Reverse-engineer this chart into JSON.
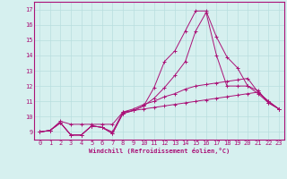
{
  "xlabel": "Windchill (Refroidissement éolien,°C)",
  "background_color": "#d6f0ef",
  "grid_color": "#b8dede",
  "line_color": "#aa1177",
  "xlim": [
    -0.5,
    23.5
  ],
  "ylim": [
    8.5,
    17.5
  ],
  "yticks": [
    9,
    10,
    11,
    12,
    13,
    14,
    15,
    16,
    17
  ],
  "xticks": [
    0,
    1,
    2,
    3,
    4,
    5,
    6,
    7,
    8,
    9,
    10,
    11,
    12,
    13,
    14,
    15,
    16,
    17,
    18,
    19,
    20,
    21,
    22,
    23
  ],
  "series": [
    [
      9.0,
      9.1,
      9.6,
      8.8,
      8.8,
      9.4,
      9.3,
      9.0,
      10.3,
      10.4,
      10.5,
      10.6,
      10.7,
      10.8,
      10.9,
      11.0,
      11.1,
      11.2,
      11.3,
      11.4,
      11.5,
      11.6,
      11.0,
      10.5
    ],
    [
      9.0,
      9.1,
      9.6,
      8.8,
      8.8,
      9.4,
      9.3,
      8.9,
      10.2,
      10.4,
      10.7,
      11.9,
      13.6,
      14.3,
      15.6,
      16.9,
      16.9,
      15.2,
      13.9,
      13.2,
      12.0,
      11.7,
      10.9,
      10.5
    ],
    [
      9.0,
      9.1,
      9.6,
      8.8,
      8.8,
      9.4,
      9.3,
      8.9,
      10.2,
      10.4,
      10.7,
      11.2,
      11.9,
      12.7,
      13.6,
      15.6,
      16.8,
      14.0,
      12.0,
      12.0,
      12.0,
      11.5,
      10.9,
      10.5
    ],
    [
      9.0,
      9.1,
      9.7,
      9.5,
      9.5,
      9.5,
      9.5,
      9.5,
      10.3,
      10.5,
      10.8,
      11.0,
      11.3,
      11.5,
      11.8,
      12.0,
      12.1,
      12.2,
      12.3,
      12.4,
      12.5,
      11.6,
      11.0,
      10.5
    ]
  ]
}
